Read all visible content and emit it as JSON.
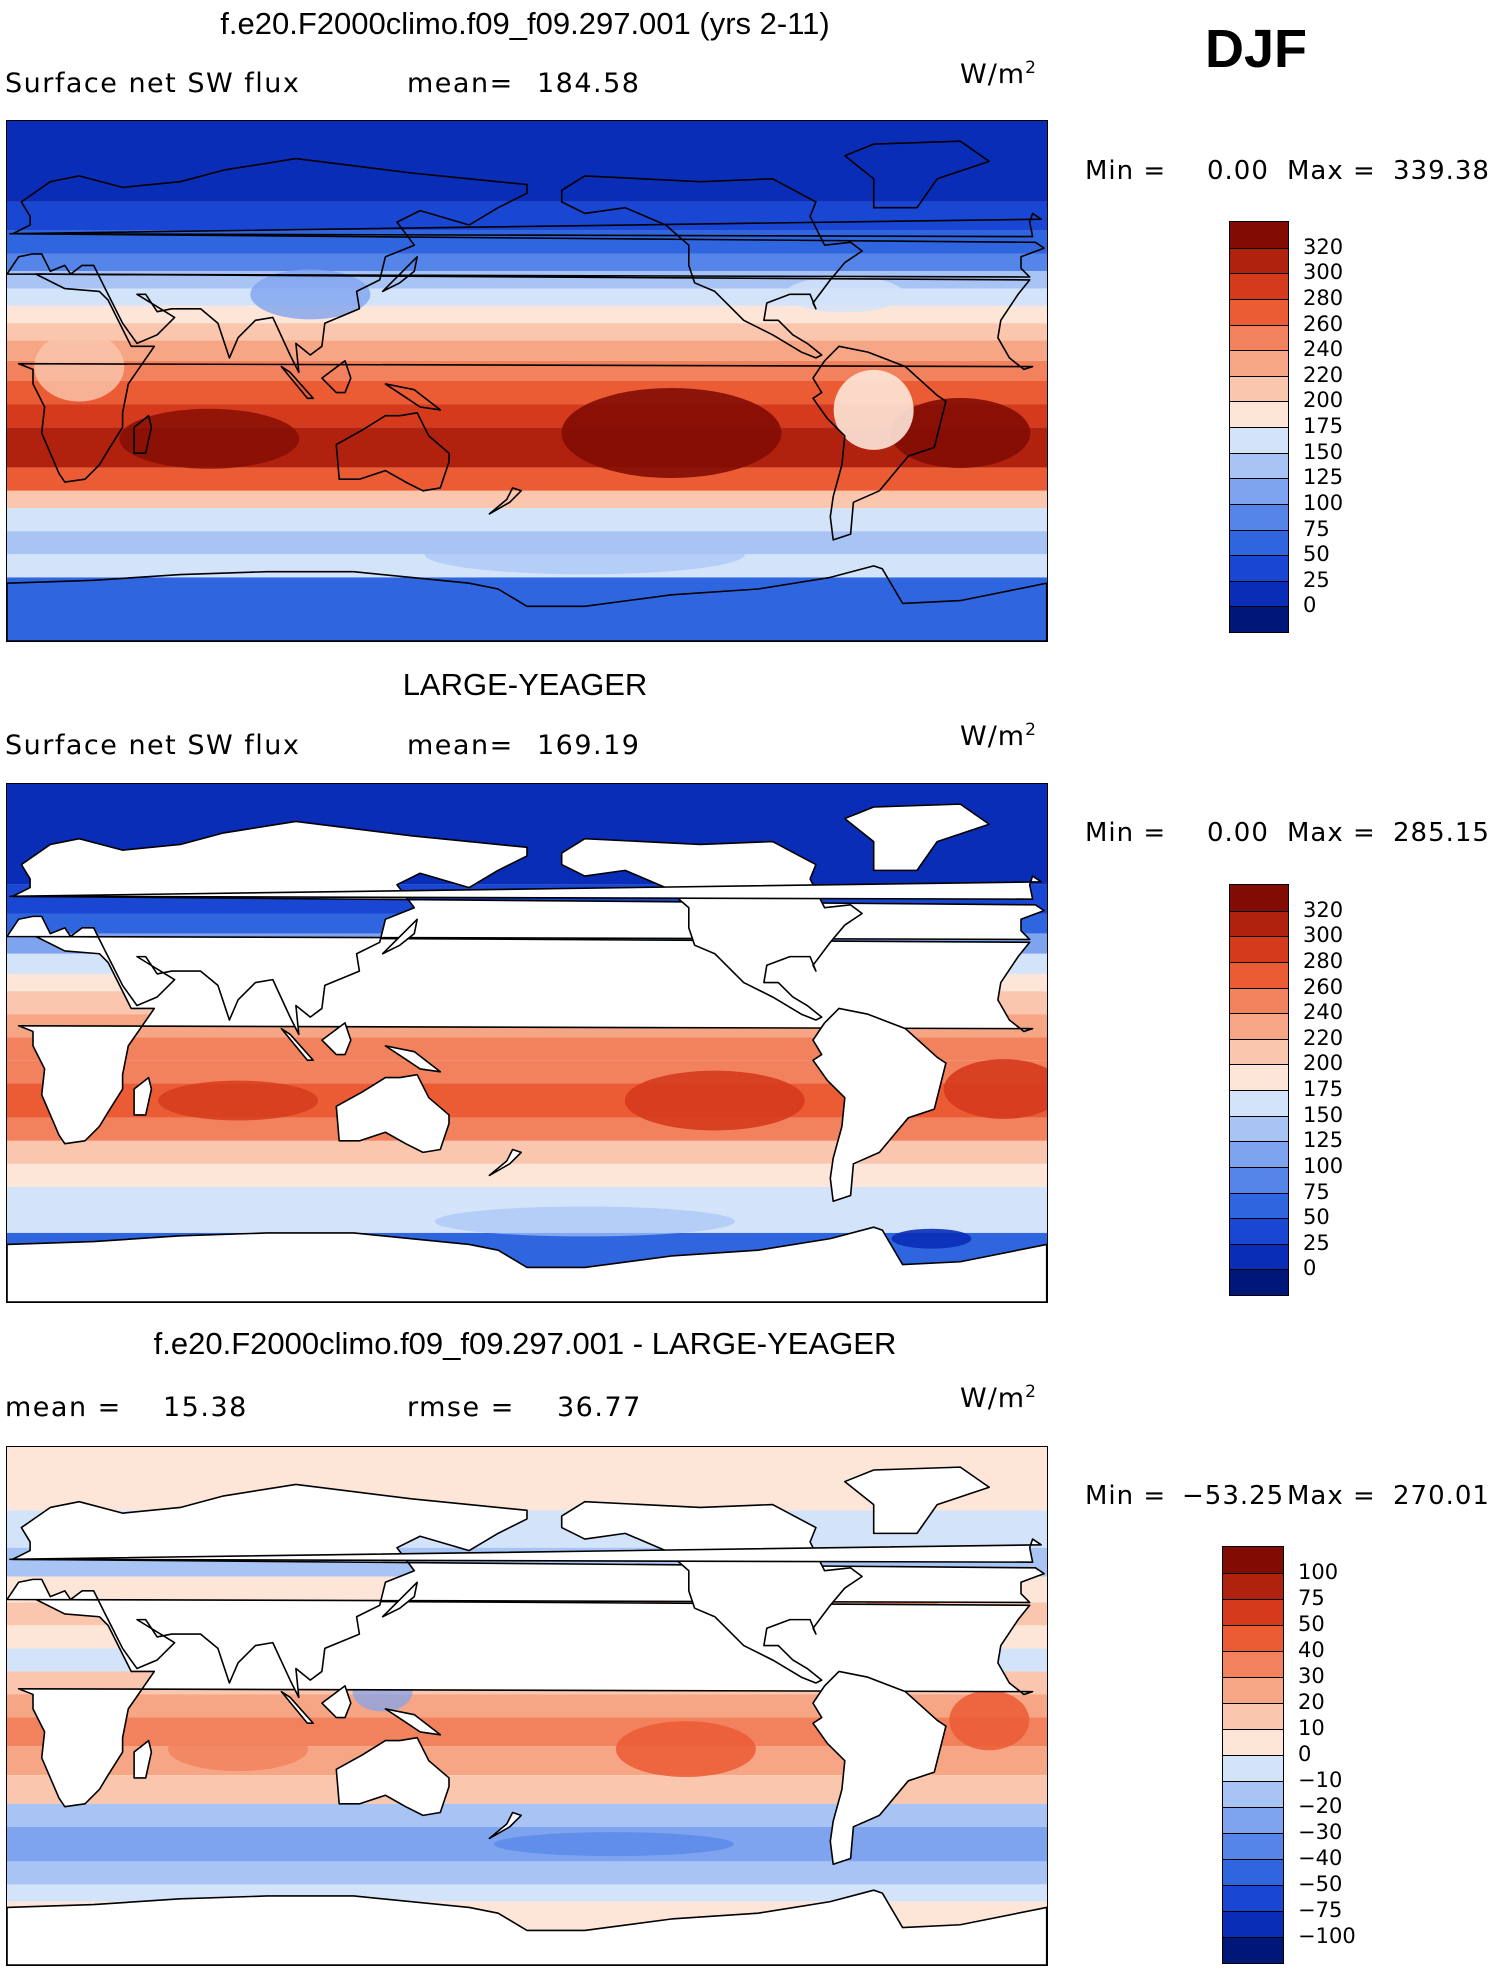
{
  "season": "DJF",
  "units_base": "W/m",
  "units_exp": "2",
  "colors": {
    "abs": [
      "#00177a",
      "#0a2db8",
      "#1947d4",
      "#2f66e0",
      "#5585e8",
      "#7ea4ef",
      "#a8c4f5",
      "#d3e4fa",
      "#fde6d8",
      "#fac7ae",
      "#f6a684",
      "#f2825e",
      "#eb5b34",
      "#d53a1c",
      "#b0210e",
      "#820c04"
    ],
    "diff": [
      "#00177a",
      "#0a2db8",
      "#1947d4",
      "#2f66e0",
      "#5585e8",
      "#7ea4ef",
      "#a8c4f5",
      "#d3e4fa",
      "#fde6d8",
      "#fac7ae",
      "#f6a684",
      "#f2825e",
      "#eb5b34",
      "#d53a1c",
      "#b0210e",
      "#820c04"
    ],
    "land": "#ffffff",
    "coast": "#000000"
  },
  "panels": [
    {
      "title": "f.e20.F2000climo.f09_f09.297.001 (yrs 2-11)",
      "left_label": "Surface net SW flux",
      "right_label": "mean=",
      "right_value": "184.58",
      "min_label": "Min =",
      "min_value": "0.00",
      "max_label": "Max =",
      "max_value": "339.38",
      "levels": [
        "320",
        "300",
        "280",
        "260",
        "240",
        "220",
        "200",
        "175",
        "150",
        "125",
        "100",
        "75",
        "50",
        "25",
        "0"
      ],
      "land_masked": false
    },
    {
      "title": "LARGE-YEAGER",
      "left_label": "Surface net SW flux",
      "right_label": "mean=",
      "right_value": "169.19",
      "min_label": "Min =",
      "min_value": "0.00",
      "max_label": "Max =",
      "max_value": "285.15",
      "levels": [
        "320",
        "300",
        "280",
        "260",
        "240",
        "220",
        "200",
        "175",
        "150",
        "125",
        "100",
        "75",
        "50",
        "25",
        "0"
      ],
      "land_masked": true
    },
    {
      "title": "f.e20.F2000climo.f09_f09.297.001 - LARGE-YEAGER",
      "left_label": "mean =",
      "left_value": "15.38",
      "right_label": "rmse =",
      "right_value": "36.77",
      "min_label": "Min =",
      "min_value": "−53.25",
      "max_label": "Max =",
      "max_value": "270.01",
      "levels": [
        "100",
        "75",
        "50",
        "40",
        "30",
        "20",
        "10",
        "0",
        "−10",
        "−20",
        "−30",
        "−40",
        "−50",
        "−75",
        "−100"
      ],
      "land_masked": true
    }
  ]
}
